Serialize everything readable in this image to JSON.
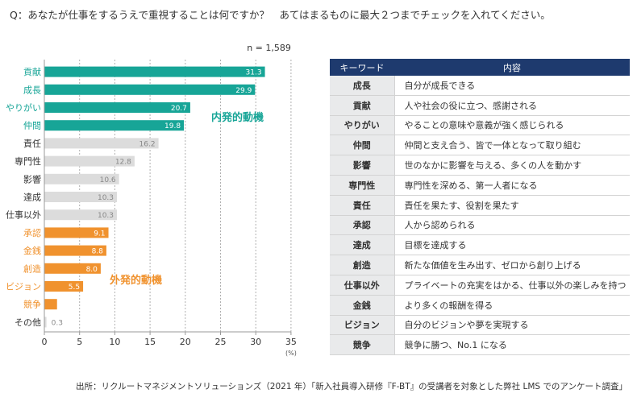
{
  "question": "Q：あなたが仕事をするうえで重視することは何ですか？　あてはまるものに最大２つまでチェックを入れてください。",
  "chart_data": {
    "type": "bar",
    "orientation": "horizontal",
    "sample_label": "n = 1,589",
    "unit_label": "(%)",
    "xlim": [
      0,
      35
    ],
    "ticks": [
      0,
      5,
      10,
      15,
      20,
      25,
      30,
      35
    ],
    "categories": [
      "貢献",
      "成長",
      "やりがい",
      "仲間",
      "責任",
      "専門性",
      "影響",
      "達成",
      "仕事以外",
      "承認",
      "金銭",
      "創造",
      "ビジョン",
      "競争",
      "その他"
    ],
    "values": [
      31.3,
      29.9,
      20.7,
      19.8,
      16.2,
      12.8,
      10.6,
      10.3,
      10.3,
      9.1,
      8.8,
      8.0,
      5.5,
      1.8,
      0.3
    ],
    "value_labels": [
      "31.3",
      "29.9",
      "20.7",
      "19.8",
      "16.2",
      "12.8",
      "10.6",
      "10.3",
      "10.3",
      "9.1",
      "8.8",
      "8.0",
      "5.5",
      "",
      "0.3"
    ],
    "groups": [
      "intrinsic",
      "intrinsic",
      "intrinsic",
      "intrinsic",
      "neutral",
      "neutral",
      "neutral",
      "neutral",
      "neutral",
      "extrinsic",
      "extrinsic",
      "extrinsic",
      "extrinsic",
      "extrinsic",
      "other"
    ],
    "annotations": {
      "intrinsic": "内発的動機",
      "extrinsic": "外発的動機"
    },
    "colors": {
      "intrinsic": "#17a597",
      "neutral": "#dcdcdc",
      "extrinsic": "#f0922e",
      "other": "#dcdcdc",
      "intrinsic_text": "#17a597",
      "extrinsic_text": "#f0922e",
      "neutral_text": "#333333",
      "grid": "#b0b0b0",
      "axis": "#999999"
    }
  },
  "table": {
    "headers": [
      "キーワード",
      "内容"
    ],
    "rows": [
      {
        "keyword": "成長",
        "description": "自分が成長できる"
      },
      {
        "keyword": "貢献",
        "description": "人や社会の役に立つ、感謝される"
      },
      {
        "keyword": "やりがい",
        "description": "やることの意味や意義が強く感じられる"
      },
      {
        "keyword": "仲間",
        "description": "仲間と支え合う、皆で一体となって取り組む"
      },
      {
        "keyword": "影響",
        "description": "世のなかに影響を与える、多くの人を動かす"
      },
      {
        "keyword": "専門性",
        "description": "専門性を深める、第一人者になる"
      },
      {
        "keyword": "責任",
        "description": "責任を果たす、役割を果たす"
      },
      {
        "keyword": "承認",
        "description": "人から認められる"
      },
      {
        "keyword": "達成",
        "description": "目標を達成する"
      },
      {
        "keyword": "創造",
        "description": "新たな価値を生み出す、ゼロから創り上げる"
      },
      {
        "keyword": "仕事以外",
        "description": "プライベートの充実をはかる、仕事以外の楽しみを持つ"
      },
      {
        "keyword": "金銭",
        "description": "より多くの報酬を得る"
      },
      {
        "keyword": "ビジョン",
        "description": "自分のビジョンや夢を実現する"
      },
      {
        "keyword": "競争",
        "description": "競争に勝つ、No.1 になる"
      }
    ]
  },
  "source": "出所：リクルートマネジメントソリューションズ（2021 年）「新入社員導入研修『F-BT』の受講者を対象とした弊社 LMS でのアンケート調査」"
}
